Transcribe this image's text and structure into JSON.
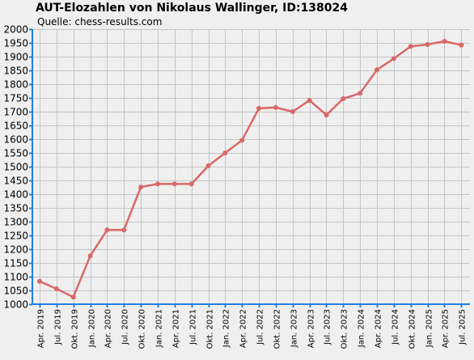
{
  "chart_data": {
    "type": "line",
    "title": "AUT-Elozahlen von Nikolaus Wallinger, ID:138024",
    "subtitle": "Quelle: chess-results.com",
    "xlabel": "",
    "ylabel": "",
    "ylim": [
      1000,
      2000
    ],
    "ytick_step": 50,
    "grid": true,
    "legend": "none",
    "colors": {
      "line": "#d96868",
      "axis": "#1f7fe0",
      "grid": "#c4c4c4",
      "background": "#efefef"
    },
    "categories": [
      "Apr. 2019",
      "Jul. 2019",
      "Okt. 2019",
      "Jan. 2020",
      "Apr. 2020",
      "Jul. 2020",
      "Okt. 2020",
      "Jan. 2021",
      "Apr. 2021",
      "Jul. 2021",
      "Okt. 2021",
      "Jan. 2022",
      "Apr. 2022",
      "Jul. 2022",
      "Okt. 2022",
      "Jan. 2023",
      "Apr. 2023",
      "Jul. 2023",
      "Okt. 2023",
      "Jan. 2024",
      "Apr. 2024",
      "Jul. 2024",
      "Okt. 2024",
      "Jan. 2025",
      "Apr. 2025",
      "Jul. 2025"
    ],
    "series": [
      {
        "values": [
          1083,
          1056,
          1026,
          1176,
          1270,
          1270,
          1426,
          1437,
          1437,
          1437,
          1503,
          1550,
          1596,
          1712,
          1715,
          1700,
          1741,
          1688,
          1747,
          1767,
          1852,
          1893,
          1937,
          1944,
          1956,
          1942
        ]
      }
    ]
  }
}
